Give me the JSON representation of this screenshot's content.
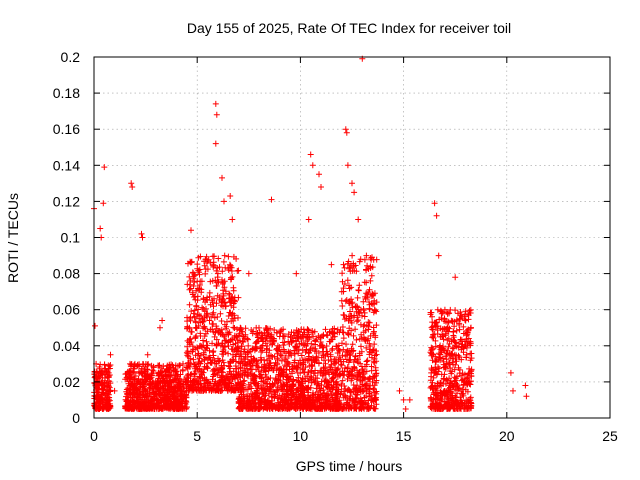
{
  "chart_data": {
    "type": "scatter",
    "title": "Day 155 of 2025, Rate Of TEC Index for receiver toil",
    "xlabel": "GPS time / hours",
    "ylabel": "ROTI / TECUs",
    "xlim": [
      0,
      25
    ],
    "ylim": [
      0,
      0.2
    ],
    "xticks": [
      0,
      5,
      10,
      15,
      20,
      25
    ],
    "yticks": [
      0,
      0.02,
      0.04,
      0.06,
      0.08,
      0.1,
      0.12,
      0.14,
      0.16,
      0.18,
      0.2
    ],
    "xtick_labels": [
      "0",
      "5",
      "10",
      "15",
      "20",
      "25"
    ],
    "ytick_labels": [
      "0",
      "0.02",
      "0.04",
      "0.06",
      "0.08",
      "0.1",
      "0.12",
      "0.14",
      "0.16",
      "0.18",
      "0.2"
    ],
    "grid": true,
    "marker": "+",
    "color": "#ff0000",
    "series": [
      {
        "name": "ROTI",
        "note": "Approximate visible outliers and representative points read from the dense cloud",
        "points": [
          [
            0.0,
            0.116
          ],
          [
            0.05,
            0.051
          ],
          [
            0.1,
            0.03
          ],
          [
            0.2,
            0.02
          ],
          [
            0.3,
            0.105
          ],
          [
            0.35,
            0.1
          ],
          [
            0.45,
            0.119
          ],
          [
            0.5,
            0.139
          ],
          [
            0.6,
            0.01
          ],
          [
            0.8,
            0.035
          ],
          [
            1.0,
            0.015
          ],
          [
            1.8,
            0.13
          ],
          [
            1.85,
            0.128
          ],
          [
            2.3,
            0.102
          ],
          [
            2.35,
            0.1
          ],
          [
            2.6,
            0.035
          ],
          [
            3.2,
            0.05
          ],
          [
            3.3,
            0.054
          ],
          [
            4.7,
            0.104
          ],
          [
            5.4,
            0.088
          ],
          [
            5.9,
            0.174
          ],
          [
            5.95,
            0.168
          ],
          [
            5.9,
            0.152
          ],
          [
            6.2,
            0.133
          ],
          [
            6.3,
            0.12
          ],
          [
            6.6,
            0.123
          ],
          [
            6.7,
            0.11
          ],
          [
            7.5,
            0.08
          ],
          [
            8.6,
            0.121
          ],
          [
            9.8,
            0.08
          ],
          [
            10.4,
            0.11
          ],
          [
            10.5,
            0.146
          ],
          [
            10.6,
            0.14
          ],
          [
            10.9,
            0.135
          ],
          [
            11.0,
            0.128
          ],
          [
            11.5,
            0.085
          ],
          [
            12.2,
            0.16
          ],
          [
            12.25,
            0.158
          ],
          [
            12.3,
            0.14
          ],
          [
            12.5,
            0.13
          ],
          [
            12.6,
            0.125
          ],
          [
            12.8,
            0.11
          ],
          [
            13.0,
            0.199
          ],
          [
            13.2,
            0.09
          ],
          [
            13.6,
            0.06
          ],
          [
            14.8,
            0.015
          ],
          [
            15.0,
            0.01
          ],
          [
            15.1,
            0.005
          ],
          [
            15.3,
            0.01
          ],
          [
            16.5,
            0.119
          ],
          [
            16.6,
            0.112
          ],
          [
            16.7,
            0.09
          ],
          [
            17.0,
            0.06
          ],
          [
            17.5,
            0.078
          ],
          [
            18.0,
            0.04
          ],
          [
            18.2,
            0.025
          ],
          [
            20.2,
            0.025
          ],
          [
            20.3,
            0.015
          ],
          [
            20.9,
            0.018
          ],
          [
            20.95,
            0.012
          ]
        ]
      }
    ],
    "dense_clusters": [
      {
        "x_range": [
          0.0,
          0.8
        ],
        "y_range": [
          0.005,
          0.03
        ]
      },
      {
        "x_range": [
          1.5,
          4.5
        ],
        "y_range": [
          0.005,
          0.03
        ]
      },
      {
        "x_range": [
          4.5,
          7.0
        ],
        "y_range": [
          0.015,
          0.09
        ]
      },
      {
        "x_range": [
          7.0,
          9.5
        ],
        "y_range": [
          0.005,
          0.05
        ]
      },
      {
        "x_range": [
          9.5,
          12.0
        ],
        "y_range": [
          0.005,
          0.05
        ]
      },
      {
        "x_range": [
          12.0,
          13.7
        ],
        "y_range": [
          0.005,
          0.09
        ]
      },
      {
        "x_range": [
          16.3,
          18.3
        ],
        "y_range": [
          0.005,
          0.06
        ]
      }
    ]
  }
}
